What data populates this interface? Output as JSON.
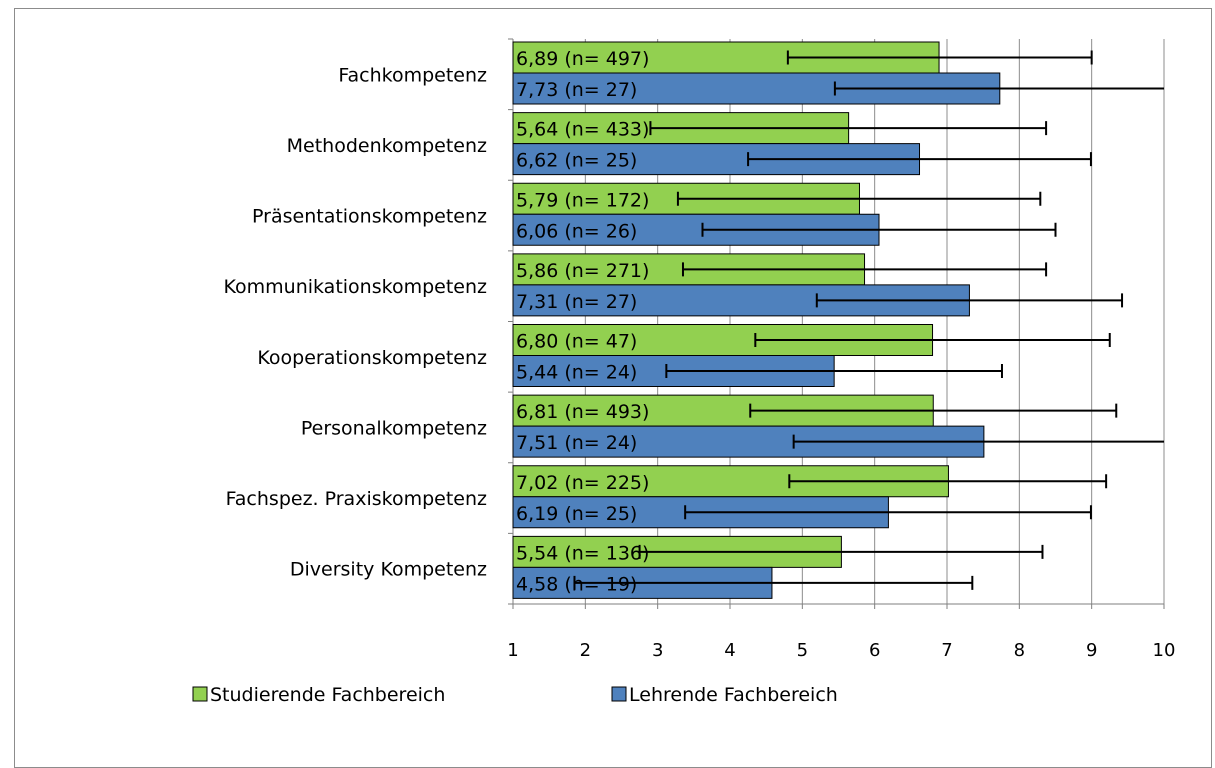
{
  "chart_data": {
    "type": "bar",
    "orientation": "horizontal",
    "categories": [
      "Fachkompetenz",
      "Methodenkompetenz",
      "Präsentationskompetenz",
      "Kommunikationskompetenz",
      "Kooperationskompetenz",
      "Personalkompetenz",
      "Fachspez. Praxiskompetenz",
      "Diversity Kompetenz"
    ],
    "series": [
      {
        "name": "Studierende Fachbereich",
        "color": "#92d050",
        "values": [
          6.89,
          5.64,
          5.79,
          5.86,
          6.8,
          6.81,
          7.02,
          5.54
        ],
        "error_low": [
          4.8,
          2.9,
          3.28,
          3.35,
          4.35,
          4.28,
          4.82,
          2.75
        ],
        "error_high": [
          9.0,
          8.37,
          8.29,
          8.37,
          9.25,
          9.34,
          9.2,
          8.32
        ],
        "labels": [
          "6,89 (n= 497)",
          "5,64 (n= 433)",
          "5,79 (n= 172)",
          "5,86 (n= 271)",
          "6,80 (n= 47)",
          "6,81 (n= 493)",
          "7,02 (n= 225)",
          "5,54 (n= 136)"
        ]
      },
      {
        "name": "Lehrende Fachbereich",
        "color": "#4f81bd",
        "values": [
          7.73,
          6.62,
          6.06,
          7.31,
          5.44,
          7.51,
          6.19,
          4.58
        ],
        "error_low": [
          5.45,
          4.25,
          3.62,
          5.2,
          3.12,
          4.88,
          3.38,
          1.85
        ],
        "error_high": [
          10.0,
          8.99,
          8.5,
          9.42,
          7.76,
          10.0,
          8.99,
          7.35
        ],
        "labels": [
          "7,73 (n= 27)",
          "6,62 (n= 25)",
          "6,06 (n= 26)",
          "7,31 (n= 27)",
          "5,44 (n= 24)",
          "7,51 (n= 24)",
          "6,19 (n= 25)",
          "4,58 (n= 19)"
        ]
      }
    ],
    "xlim": [
      1,
      10
    ],
    "xticks": [
      "1",
      "2",
      "3",
      "4",
      "5",
      "6",
      "7",
      "8",
      "9",
      "10"
    ],
    "grid": "vertical",
    "legend_position": "bottom-left",
    "title": "",
    "xlabel": "",
    "ylabel": ""
  }
}
